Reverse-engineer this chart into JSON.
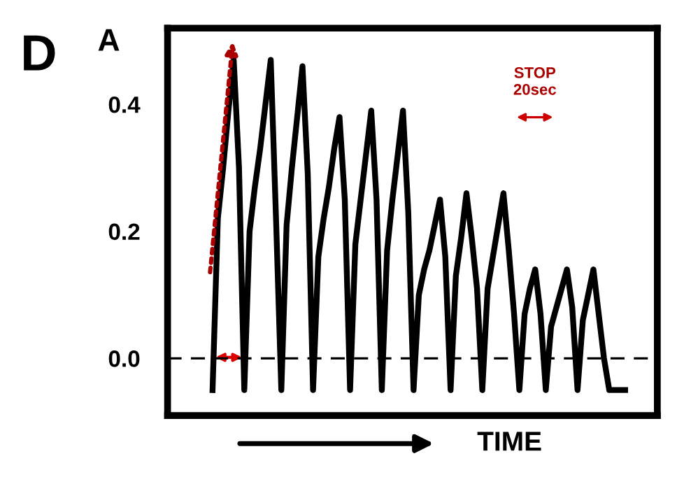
{
  "chart_data": {
    "type": "line",
    "xlabel": "TIME",
    "ylabel": "A",
    "annotations": [
      "D",
      "STOP\n20sec"
    ],
    "categories": [
      null,
      null,
      null,
      null,
      null,
      null,
      null,
      null,
      null,
      null,
      null,
      null,
      null,
      null,
      null,
      null,
      null,
      null,
      null,
      null,
      null,
      null,
      null,
      null,
      null,
      null,
      null,
      null,
      null,
      null,
      null,
      null,
      null,
      null,
      null,
      null,
      null,
      null,
      null,
      null,
      null,
      null,
      null,
      null,
      null,
      null,
      null,
      null,
      null,
      null,
      null,
      null,
      null,
      null,
      null,
      null,
      null,
      null,
      null,
      null,
      null,
      null,
      null,
      null,
      null,
      null,
      null,
      null,
      null,
      null,
      null,
      null,
      null,
      null,
      null,
      null,
      null,
      null,
      null
    ],
    "ylim": [
      -0.09,
      0.52
    ],
    "yticks": [
      {
        "value": 0,
        "label": "0.0"
      },
      {
        "value": 0.2,
        "label": "0.2"
      },
      {
        "value": 0.4,
        "label": "0.4"
      }
    ],
    "tick_labels": "y",
    "grid": false,
    "series": [
      {
        "color": "#000000",
        "line_style": "solid",
        "values": [
          -0.05,
          0.22,
          0.3,
          0.39,
          0.47,
          0.3,
          -0.05,
          0.2,
          0.27,
          0.33,
          0.4,
          0.47,
          0.22,
          -0.05,
          0.21,
          0.3,
          0.38,
          0.46,
          0.29,
          -0.05,
          0.16,
          0.22,
          0.27,
          0.33,
          0.38,
          0.25,
          -0.05,
          0.18,
          0.25,
          0.32,
          0.39,
          0.25,
          -0.05,
          0.17,
          0.25,
          0.32,
          0.39,
          0.23,
          -0.05,
          0.1,
          0.14,
          0.17,
          0.21,
          0.25,
          0.16,
          -0.05,
          0.13,
          0.19,
          0.26,
          0.19,
          0.11,
          -0.05,
          0.11,
          0.16,
          0.21,
          0.26,
          0.17,
          0.07,
          -0.05,
          0.07,
          0.11,
          0.14,
          0.07,
          -0.05,
          0.05,
          0.08,
          0.11,
          0.14,
          0.08,
          -0.05,
          0.06,
          0.1,
          0.14,
          0.07,
          0.0,
          -0.05,
          -0.05,
          -0.05,
          -0.05
        ]
      }
    ],
    "ref_lines": [
      {
        "axis": "y",
        "value": 0,
        "color": "#000000",
        "line_style": "dashed"
      }
    ]
  }
}
